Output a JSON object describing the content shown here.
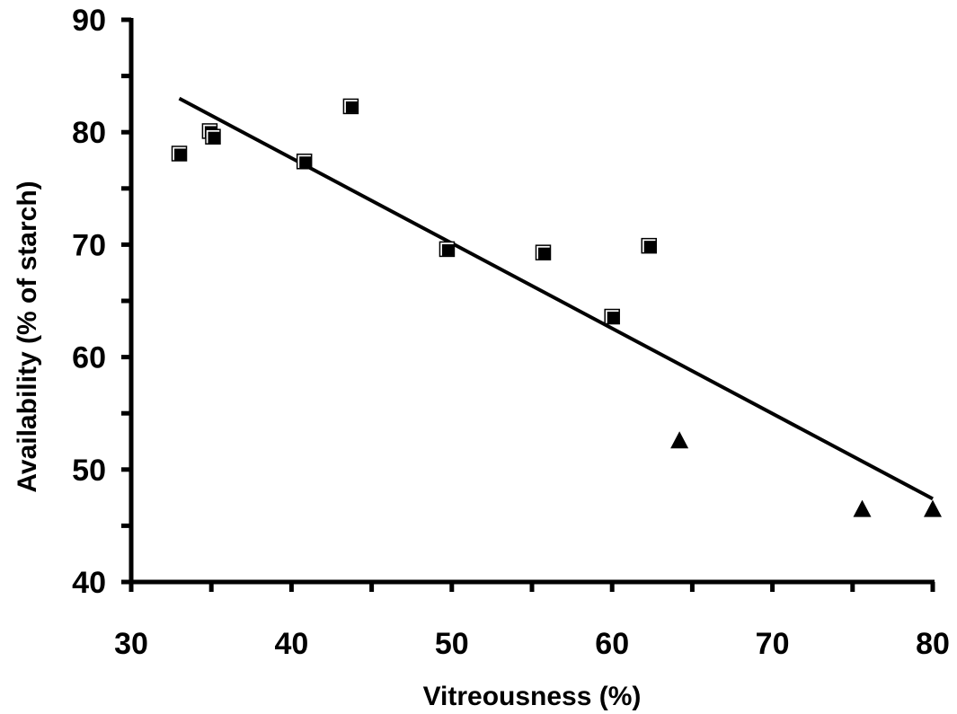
{
  "chart_data": {
    "type": "scatter",
    "title": "",
    "xlabel": "Vitreousness (%)",
    "ylabel": "Availability (% of starch)",
    "xlim": [
      30,
      80
    ],
    "ylim": [
      40,
      90
    ],
    "x_ticks": [
      30,
      40,
      50,
      60,
      70,
      80
    ],
    "y_ticks": [
      40,
      50,
      60,
      70,
      80,
      90
    ],
    "grid": false,
    "legend": "none",
    "series": [
      {
        "marker": "square",
        "points": [
          {
            "x": 33.0,
            "y": 78.1
          },
          {
            "x": 34.9,
            "y": 80.1
          },
          {
            "x": 35.1,
            "y": 79.6
          },
          {
            "x": 40.8,
            "y": 77.4
          },
          {
            "x": 43.7,
            "y": 82.3
          },
          {
            "x": 49.7,
            "y": 69.6
          },
          {
            "x": 55.7,
            "y": 69.3
          },
          {
            "x": 60.0,
            "y": 63.6
          },
          {
            "x": 62.3,
            "y": 69.9
          }
        ]
      },
      {
        "marker": "triangle",
        "points": [
          {
            "x": 64.2,
            "y": 52.6
          },
          {
            "x": 75.6,
            "y": 46.5
          },
          {
            "x": 80.0,
            "y": 46.5
          }
        ]
      }
    ],
    "trendline": {
      "x1": 33.0,
      "y1": 83.0,
      "x2": 80.0,
      "y2": 47.4
    }
  }
}
